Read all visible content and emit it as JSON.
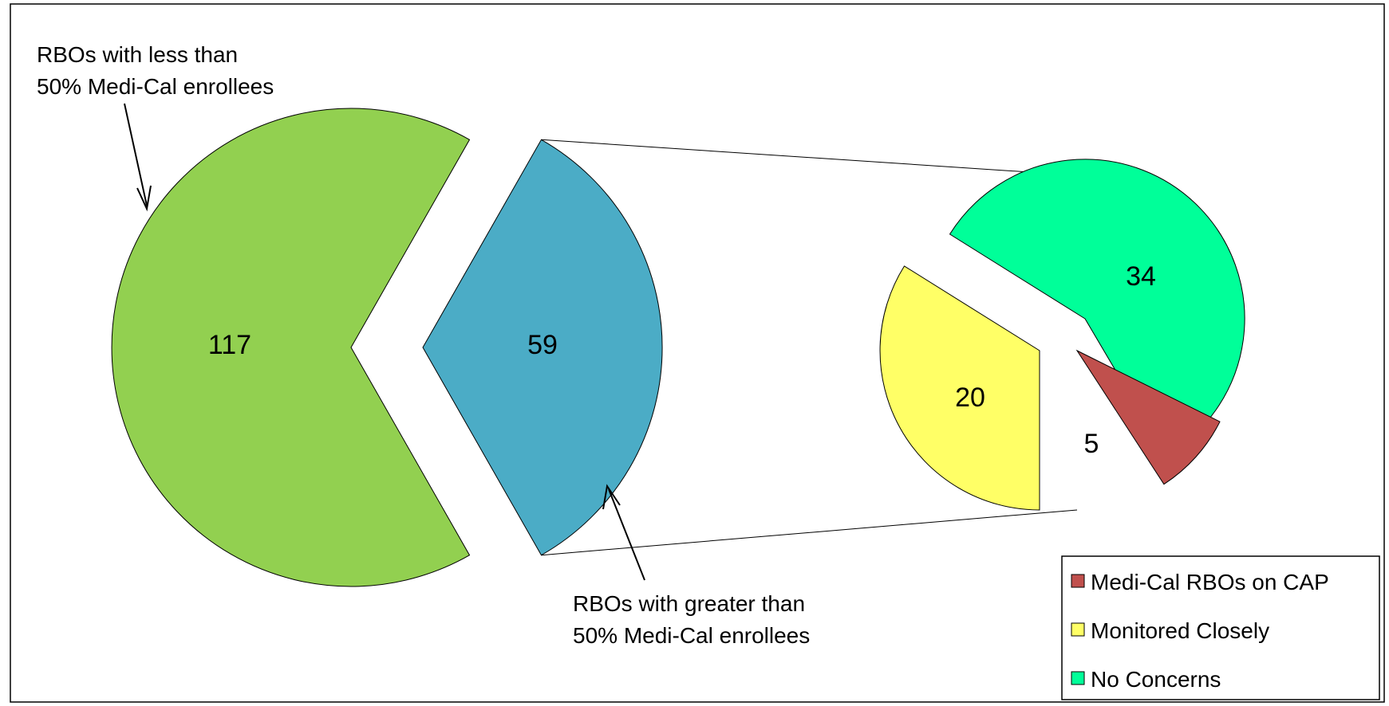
{
  "chart_data": {
    "type": "pie",
    "variant": "pie-of-pie",
    "main_pie": {
      "slices": [
        {
          "label": "RBOs with less than 50% Medi-Cal enrollees",
          "value": 117,
          "color": "#92D050"
        },
        {
          "label": "RBOs with greater than 50% Medi-Cal enrollees",
          "value": 59,
          "color": "#4BACC6"
        }
      ]
    },
    "secondary_pie": {
      "slices": [
        {
          "label": "Medi-Cal RBOs on CAP",
          "value": 5,
          "color": "#C0504D"
        },
        {
          "label": "Monitored Closely",
          "value": 20,
          "color": "#FFFF66"
        },
        {
          "label": "No Concerns",
          "value": 34,
          "color": "#00FF99"
        }
      ]
    },
    "annotations": {
      "less_than": [
        "RBOs with less than",
        "50% Medi-Cal enrollees"
      ],
      "greater_than": [
        "RBOs with greater than",
        "50% Medi-Cal enrollees"
      ]
    },
    "legend": {
      "position": "bottom-right",
      "entries": [
        "Medi-Cal RBOs on CAP",
        "Monitored Closely",
        "No Concerns"
      ]
    }
  }
}
